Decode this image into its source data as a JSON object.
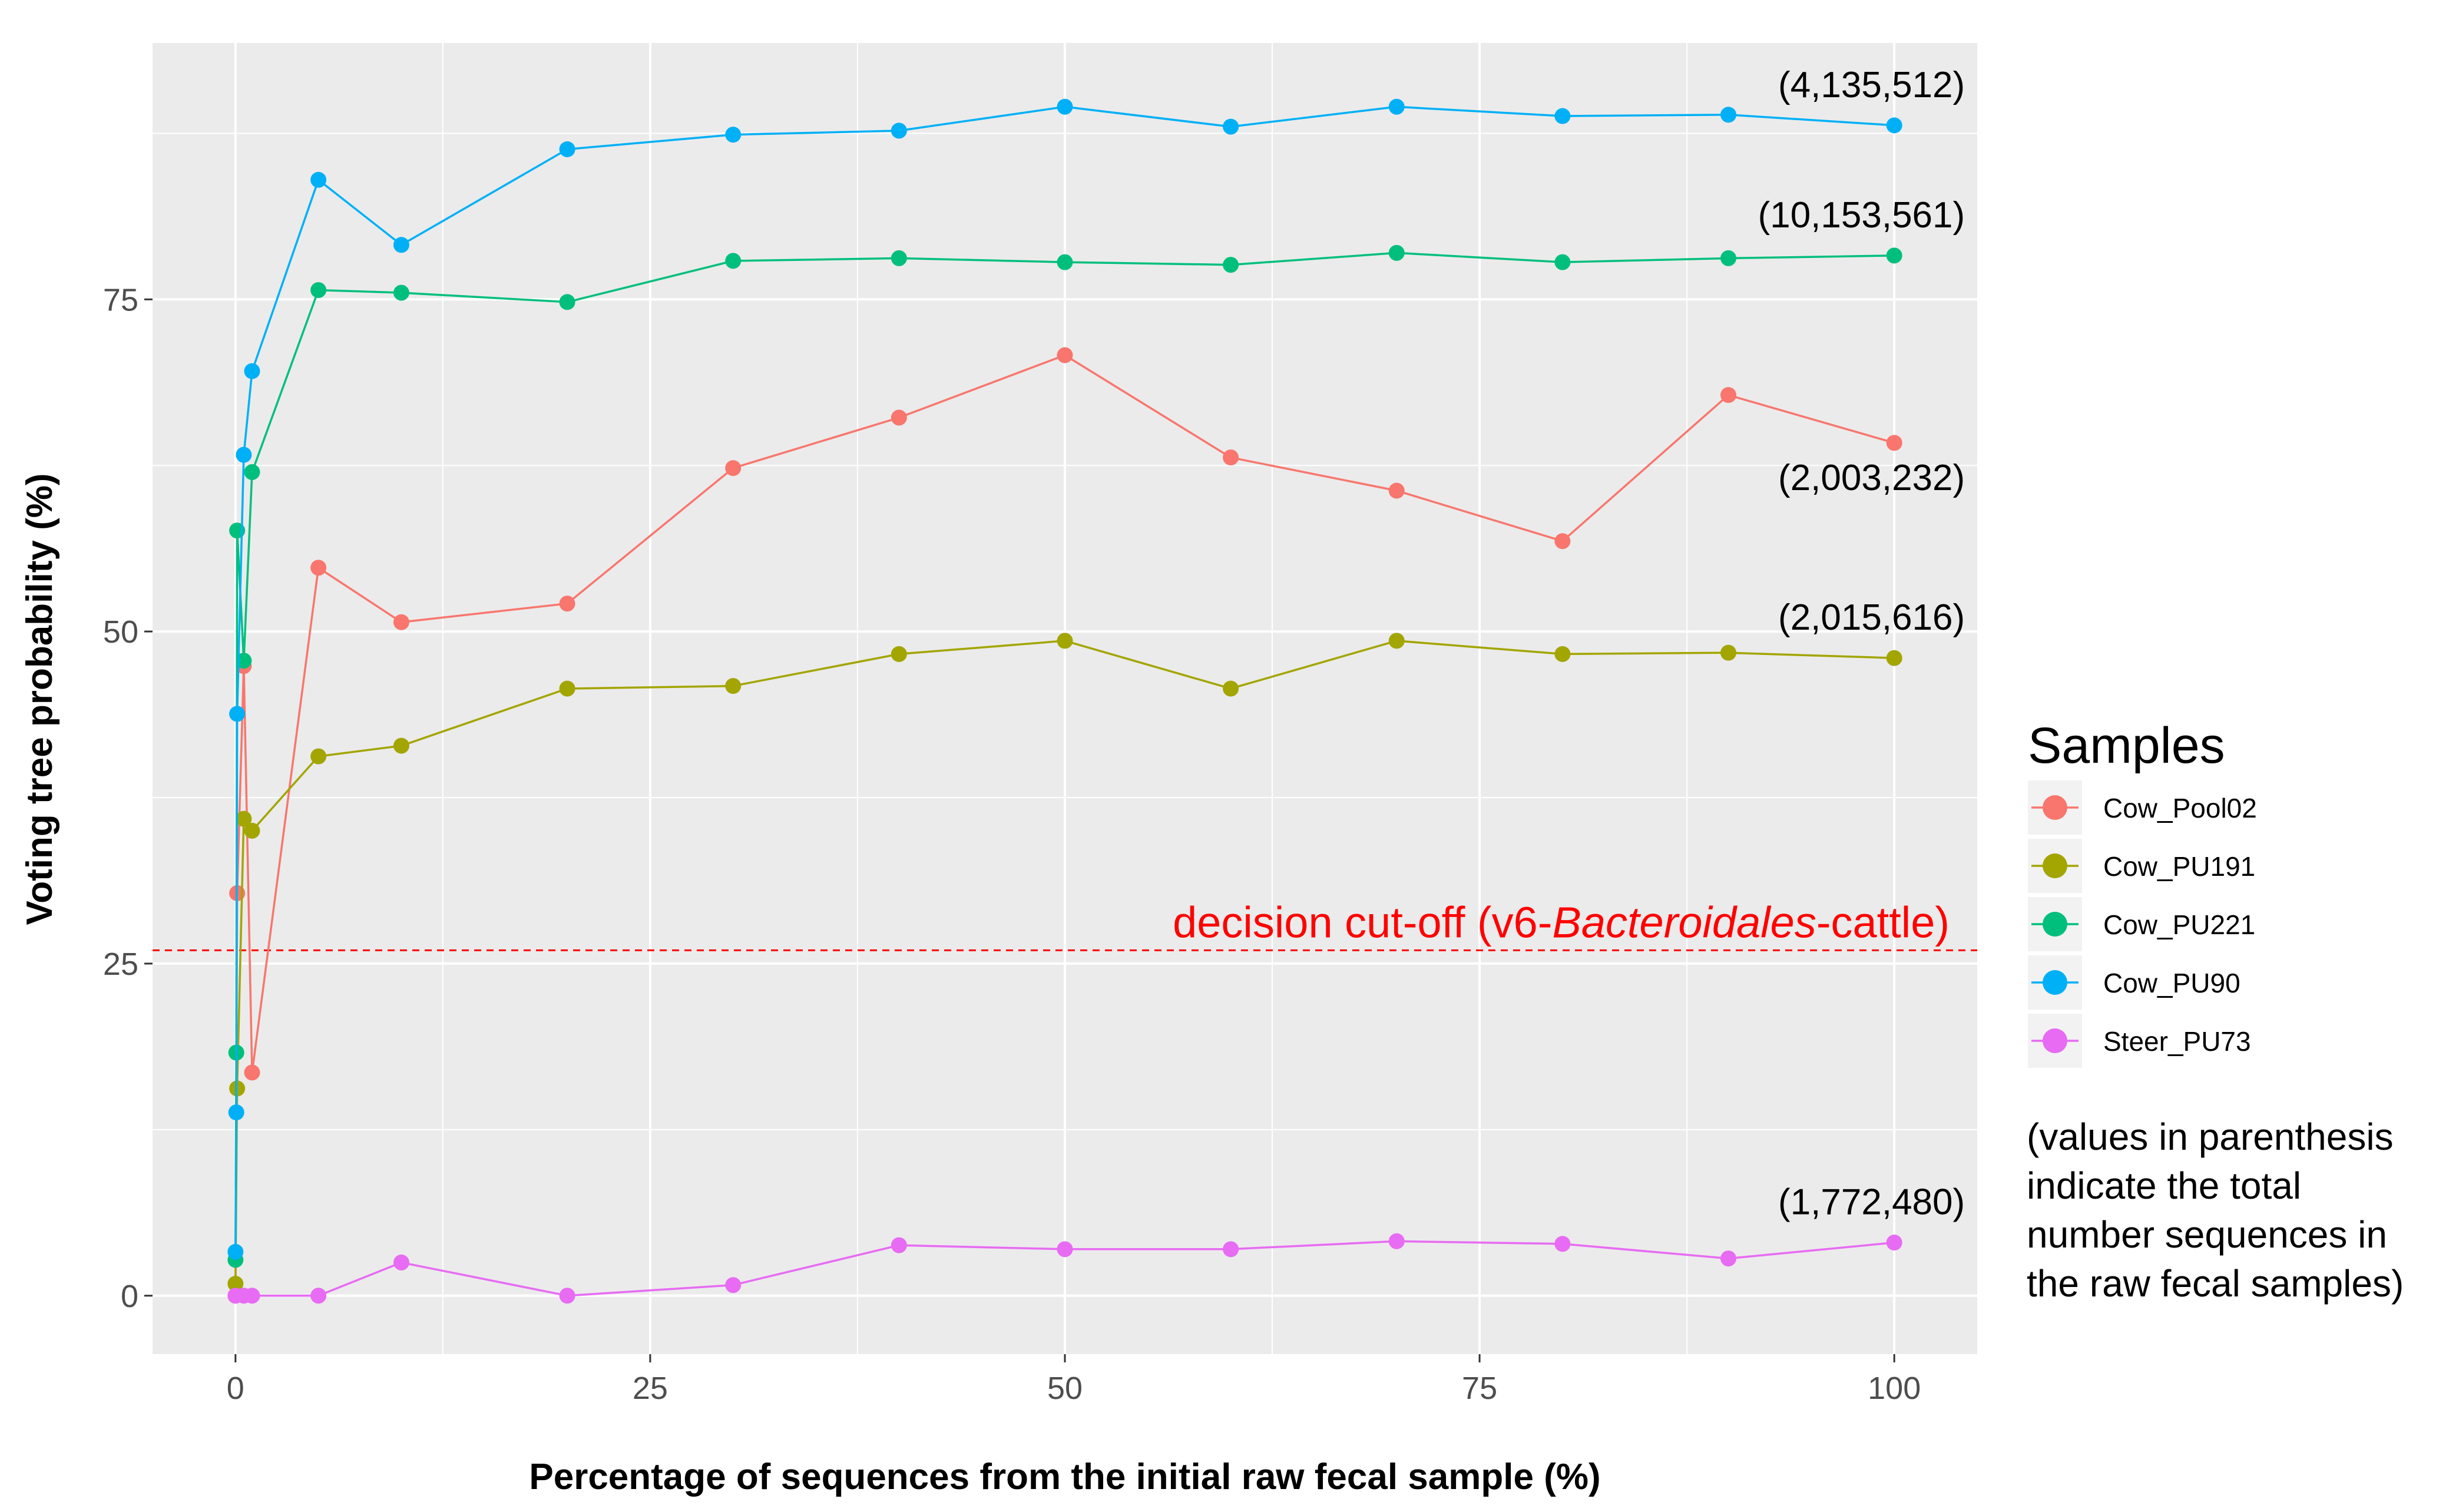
{
  "chart_data": {
    "type": "line",
    "title": "",
    "xlabel": "Percentage of sequences from the initial raw fecal sample (%)",
    "ylabel": "Voting tree probability (%)",
    "xlim": [
      -5,
      105
    ],
    "ylim": [
      -4.4,
      94.3
    ],
    "xticks": [
      0,
      25,
      50,
      75,
      100
    ],
    "yticks": [
      0,
      25,
      50,
      75
    ],
    "grid": true,
    "legend_title": "Samples",
    "legend_position": "right",
    "series": [
      {
        "name": "Cow_Pool02",
        "color": "#F8766D",
        "x": [
          0,
          0.1,
          0.5,
          1,
          5,
          10,
          20,
          30,
          40,
          50,
          60,
          70,
          80,
          90,
          100
        ],
        "y": [
          0,
          30.3,
          47.4,
          16.8,
          54.8,
          50.7,
          52.1,
          62.3,
          66.1,
          70.8,
          63.1,
          60.6,
          56.8,
          67.8,
          64.2
        ],
        "annotation": "(2,003,232)"
      },
      {
        "name": "Cow_PU191",
        "color": "#A3A500",
        "x": [
          0,
          0.1,
          0.5,
          1,
          5,
          10,
          20,
          30,
          40,
          50,
          60,
          70,
          80,
          90,
          100
        ],
        "y": [
          0.9,
          15.6,
          35.9,
          35.0,
          40.6,
          41.4,
          45.7,
          45.9,
          48.3,
          49.3,
          45.7,
          49.3,
          48.3,
          48.4,
          48.0
        ],
        "annotation": "(2,015,616)"
      },
      {
        "name": "Cow_PU221",
        "color": "#00BF7D",
        "x": [
          0,
          0.05,
          0.1,
          0.5,
          1,
          5,
          10,
          20,
          30,
          40,
          50,
          60,
          70,
          80,
          90,
          100
        ],
        "y": [
          2.7,
          18.3,
          57.6,
          47.8,
          62.0,
          75.7,
          75.5,
          74.8,
          77.9,
          78.1,
          77.8,
          77.6,
          78.5,
          77.8,
          78.1,
          78.3
        ],
        "annotation": "(10,153,561)"
      },
      {
        "name": "Cow_PU90",
        "color": "#00B0F6",
        "x": [
          0,
          0.05,
          0.1,
          0.5,
          1,
          5,
          10,
          20,
          30,
          40,
          50,
          60,
          70,
          80,
          90,
          100
        ],
        "y": [
          3.3,
          13.8,
          43.8,
          63.3,
          69.6,
          84.0,
          79.1,
          86.3,
          87.4,
          87.7,
          89.5,
          88.0,
          89.5,
          88.8,
          88.9,
          88.1
        ],
        "annotation": "(4,135,512)"
      },
      {
        "name": "Steer_PU73",
        "color": "#E76BF3",
        "x": [
          0,
          0.5,
          1,
          5,
          10,
          20,
          30,
          40,
          50,
          60,
          70,
          80,
          90,
          100
        ],
        "y": [
          0,
          0,
          0,
          0,
          2.5,
          0,
          0.8,
          3.8,
          3.5,
          3.5,
          4.1,
          3.9,
          2.8,
          4.0
        ],
        "annotation": "(1,772,480)"
      }
    ],
    "cutoff": {
      "y": 26,
      "color": "#FF0000",
      "label_prefix": "decision cut-off (v6-",
      "label_italic": "Bacteroidales",
      "label_suffix": "-cattle)"
    },
    "note_lines": [
      "(values in parenthesis",
      "indicate the total",
      "number sequences in",
      "the raw fecal samples)"
    ]
  }
}
